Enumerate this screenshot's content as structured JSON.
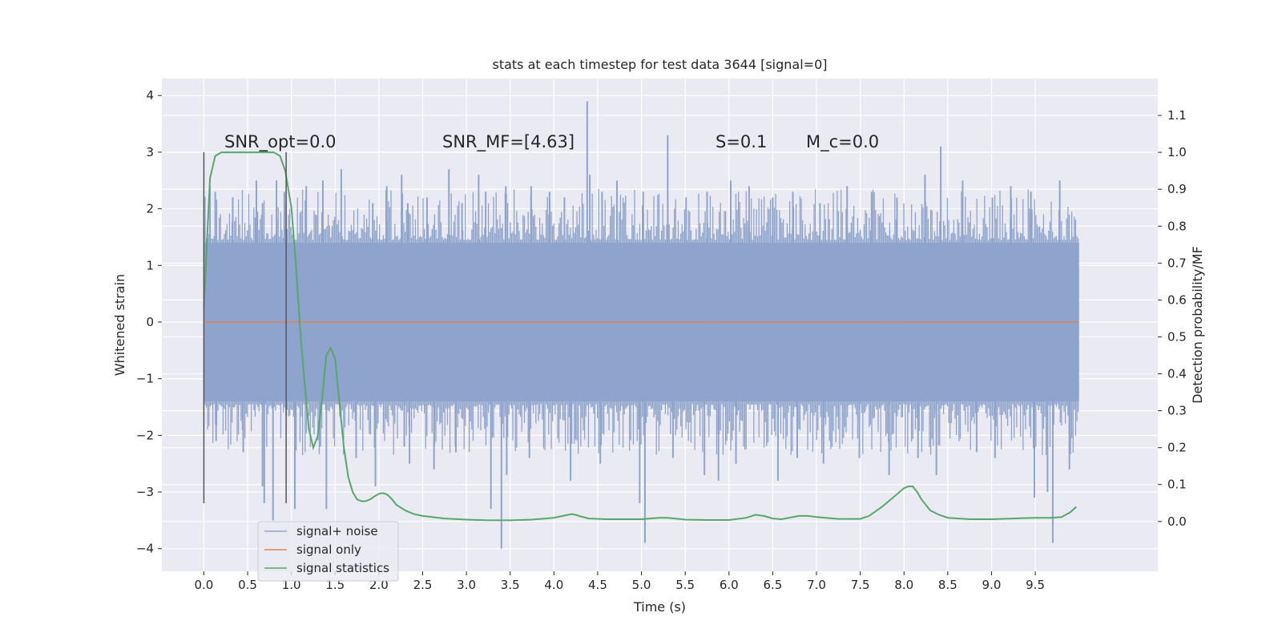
{
  "chart_data": {
    "type": "line",
    "title": "stats at each timestep for test data 3644 [signal=0]",
    "xlabel": "Time (s)",
    "ylabel": "Whitened strain",
    "y2label": "Detection probability/MF",
    "xlim": [
      -0.48,
      10.9
    ],
    "ylim": [
      -4.4,
      4.3
    ],
    "y2lim": [
      -0.135,
      1.2
    ],
    "xticks": [
      0.0,
      0.5,
      1.0,
      1.5,
      2.0,
      2.5,
      3.0,
      3.5,
      4.0,
      4.5,
      5.0,
      5.5,
      6.0,
      6.5,
      7.0,
      7.5,
      8.0,
      8.5,
      9.0,
      9.5
    ],
    "xtick_labels": [
      "0.0",
      "0.5",
      "1.0",
      "1.5",
      "2.0",
      "2.5",
      "3.0",
      "3.5",
      "4.0",
      "4.5",
      "5.0",
      "5.5",
      "6.0",
      "6.5",
      "7.0",
      "7.5",
      "8.0",
      "8.5",
      "9.0",
      "9.5"
    ],
    "yticks": [
      -4,
      -3,
      -2,
      -1,
      0,
      1,
      2,
      3,
      4
    ],
    "ytick_labels": [
      "−4",
      "−3",
      "−2",
      "−1",
      "0",
      "1",
      "2",
      "3",
      "4"
    ],
    "y2ticks": [
      0.0,
      0.1,
      0.2,
      0.3,
      0.4,
      0.5,
      0.6,
      0.7,
      0.8,
      0.9,
      1.0,
      1.1
    ],
    "y2tick_labels": [
      "0.0",
      "0.1",
      "0.2",
      "0.3",
      "0.4",
      "0.5",
      "0.6",
      "0.7",
      "0.8",
      "0.9",
      "1.0",
      "1.1"
    ],
    "grid": true,
    "legend_position": "lower-left",
    "annotations": [
      "SNR_opt=0.0",
      "SNR_MF=[4.63]",
      "S=0.1",
      "M_c=0.0"
    ],
    "vlines": [
      {
        "x": 0.0,
        "y_range": [
          -3.2,
          3.0
        ]
      },
      {
        "x": 0.94,
        "y_range": [
          -3.2,
          3.0
        ]
      }
    ],
    "series": [
      {
        "name": "signal+ noise",
        "color": "#8fa4cc",
        "style": "noise",
        "x_range": [
          0.0,
          10.0
        ],
        "core_band": [
          -1.4,
          1.4
        ],
        "upward_spikes": [
          [
            0.07,
            2.4
          ],
          [
            0.13,
            2.3
          ],
          [
            0.33,
            2.2
          ],
          [
            0.6,
            2.5
          ],
          [
            0.67,
            2.1
          ],
          [
            0.83,
            2.5
          ],
          [
            0.92,
            2.3
          ],
          [
            1.17,
            2.4
          ],
          [
            1.36,
            2.5
          ],
          [
            1.57,
            2.7
          ],
          [
            1.93,
            2.1
          ],
          [
            2.09,
            2.4
          ],
          [
            2.26,
            2.6
          ],
          [
            2.33,
            2.1
          ],
          [
            2.55,
            2.2
          ],
          [
            2.8,
            2.7
          ],
          [
            2.95,
            2.1
          ],
          [
            3.14,
            2.6
          ],
          [
            3.22,
            2.3
          ],
          [
            3.45,
            2.4
          ],
          [
            3.74,
            2.4
          ],
          [
            3.95,
            2.3
          ],
          [
            4.12,
            2.2
          ],
          [
            4.38,
            3.9
          ],
          [
            4.41,
            2.6
          ],
          [
            4.55,
            2.3
          ],
          [
            4.72,
            2.5
          ],
          [
            5.02,
            2.3
          ],
          [
            5.3,
            3.3
          ],
          [
            5.51,
            2.2
          ],
          [
            5.75,
            2.3
          ],
          [
            6.02,
            2.5
          ],
          [
            6.23,
            2.4
          ],
          [
            6.5,
            2.2
          ],
          [
            6.73,
            2.3
          ],
          [
            7.04,
            2.1
          ],
          [
            7.35,
            2.4
          ],
          [
            7.63,
            2.3
          ],
          [
            7.92,
            2.2
          ],
          [
            8.24,
            2.6
          ],
          [
            8.42,
            3.1
          ],
          [
            8.67,
            2.5
          ],
          [
            9.01,
            2.2
          ],
          [
            9.22,
            2.4
          ],
          [
            9.45,
            2.3
          ],
          [
            9.78,
            2.5
          ]
        ],
        "downward_spikes": [
          [
            0.14,
            -2.1
          ],
          [
            0.45,
            -2.3
          ],
          [
            0.67,
            -2.9
          ],
          [
            0.69,
            -3.2
          ],
          [
            0.79,
            -3.5
          ],
          [
            1.04,
            -3.3
          ],
          [
            1.33,
            -2.2
          ],
          [
            1.4,
            -3.3
          ],
          [
            1.74,
            -2.4
          ],
          [
            1.96,
            -2.9
          ],
          [
            2.29,
            -2.2
          ],
          [
            2.35,
            -2.5
          ],
          [
            2.63,
            -2.6
          ],
          [
            2.88,
            -2.3
          ],
          [
            3.28,
            -3.3
          ],
          [
            3.4,
            -4.0
          ],
          [
            3.46,
            -2.7
          ],
          [
            3.72,
            -2.4
          ],
          [
            4.19,
            -2.8
          ],
          [
            4.53,
            -2.5
          ],
          [
            4.98,
            -3.2
          ],
          [
            5.04,
            -3.9
          ],
          [
            5.36,
            -2.4
          ],
          [
            5.72,
            -2.7
          ],
          [
            5.88,
            -2.8
          ],
          [
            6.08,
            -2.5
          ],
          [
            6.56,
            -2.8
          ],
          [
            6.78,
            -2.4
          ],
          [
            7.08,
            -2.5
          ],
          [
            7.49,
            -2.4
          ],
          [
            7.83,
            -2.7
          ],
          [
            8.16,
            -2.4
          ],
          [
            8.37,
            -2.7
          ],
          [
            8.83,
            -2.3
          ],
          [
            9.04,
            -2.4
          ],
          [
            9.49,
            -3.1
          ],
          [
            9.64,
            -3.0
          ],
          [
            9.7,
            -3.9
          ],
          [
            9.89,
            -2.6
          ]
        ]
      },
      {
        "name": "signal only",
        "color": "#dd8452",
        "x": [
          0.0,
          10.0
        ],
        "y": [
          0.0,
          0.0
        ]
      },
      {
        "name": "signal statistics",
        "color": "#55a868",
        "axis": "right",
        "x": [
          0.0,
          0.07,
          0.13,
          0.2,
          0.3,
          0.4,
          0.5,
          0.6,
          0.7,
          0.8,
          0.87,
          0.93,
          1.0,
          1.05,
          1.1,
          1.15,
          1.2,
          1.25,
          1.3,
          1.35,
          1.4,
          1.45,
          1.5,
          1.55,
          1.6,
          1.65,
          1.7,
          1.75,
          1.8,
          1.85,
          1.9,
          1.95,
          2.0,
          2.05,
          2.1,
          2.15,
          2.2,
          2.3,
          2.4,
          2.5,
          2.75,
          3.0,
          3.25,
          3.5,
          3.75,
          4.0,
          4.1,
          4.2,
          4.25,
          4.3,
          4.4,
          4.6,
          4.8,
          5.0,
          5.2,
          5.3,
          5.5,
          5.75,
          6.0,
          6.2,
          6.3,
          6.4,
          6.5,
          6.6,
          6.8,
          6.9,
          7.0,
          7.25,
          7.5,
          7.6,
          7.75,
          7.9,
          8.0,
          8.05,
          8.1,
          8.15,
          8.2,
          8.3,
          8.4,
          8.5,
          8.75,
          9.0,
          9.25,
          9.5,
          9.7,
          9.8,
          9.9,
          9.97
        ],
        "y": [
          0.58,
          0.93,
          0.99,
          1.0,
          1.0,
          1.0,
          1.0,
          1.0,
          1.0,
          1.0,
          0.99,
          0.95,
          0.85,
          0.7,
          0.52,
          0.38,
          0.25,
          0.2,
          0.23,
          0.33,
          0.45,
          0.47,
          0.44,
          0.32,
          0.2,
          0.12,
          0.08,
          0.06,
          0.055,
          0.055,
          0.06,
          0.068,
          0.075,
          0.077,
          0.072,
          0.06,
          0.045,
          0.03,
          0.02,
          0.015,
          0.008,
          0.005,
          0.003,
          0.003,
          0.005,
          0.01,
          0.015,
          0.02,
          0.018,
          0.014,
          0.008,
          0.006,
          0.006,
          0.006,
          0.01,
          0.01,
          0.005,
          0.004,
          0.004,
          0.01,
          0.018,
          0.015,
          0.008,
          0.006,
          0.015,
          0.015,
          0.012,
          0.007,
          0.007,
          0.015,
          0.04,
          0.07,
          0.09,
          0.095,
          0.095,
          0.08,
          0.06,
          0.03,
          0.018,
          0.01,
          0.006,
          0.006,
          0.008,
          0.01,
          0.01,
          0.012,
          0.025,
          0.04
        ]
      }
    ]
  }
}
